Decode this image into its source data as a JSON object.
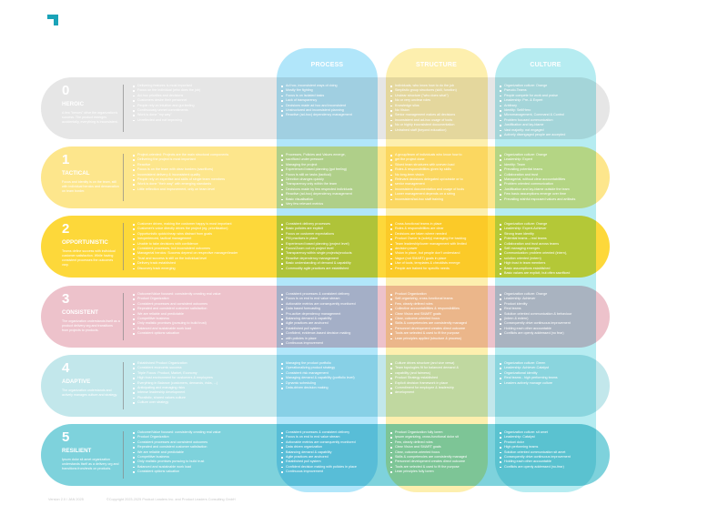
{
  "columns": [
    {
      "key": "process",
      "title": "PROCESS"
    },
    {
      "key": "structure",
      "title": "STRUCTURE"
    },
    {
      "key": "culture",
      "title": "CULTURE"
    }
  ],
  "colors": {
    "accent": "#1aa3b8",
    "process": "#b1e6fa",
    "structure": "#fdefae",
    "culture": "#b6ecf1"
  },
  "levels": [
    {
      "number": "0",
      "name": "HEROIC",
      "color": "#e6e6e6",
      "description": "A few \"heroes\" drive the organization's success. The product emerges accidentally, everything is inconsistent.",
      "summary": [
        "Delivering features is most important",
        "Focus on the individual (who does the job)",
        "Ad-hoc priorities and decisions",
        "Customers desire their personnel",
        "People rely on intuition and gut feeling",
        "Continuously unmet commitments",
        "Work is done \"my way\"",
        "Unreflected and not improving"
      ],
      "process": [
        "Ad hoc, inconsistent ways of doing",
        "Mostly fire fighting",
        "Focus is on isolated tasks",
        "Lack of transparency",
        "Decisions made ad hoc and inconsistent",
        "Unstructured and inconsistent planning",
        "Reactive (ad-hoc) dependency management"
      ],
      "structure": [
        "Individuals, who know how to do the job",
        "Simplistic group structures (skill, function)",
        "Unclear structure (\"who does what\")",
        "No or very unclear roles",
        "Knowledge silos",
        "No Vision",
        "Senior management makes all decisions",
        "Inconsistent and ad-hoc usage of tools",
        "No or highly inconsistent documentation",
        "Untrained staff (beyond education)"
      ],
      "culture": [
        "Organization culture: Orange",
        "Pseudo-Teams",
        "People compete for work and praise",
        "Leadership: Pre- & Expert",
        "Arbitrary",
        "Identity: Self/Hero",
        "Micromanagement, Command & Control",
        "Problem focused communication",
        "Justification and lay-blame",
        "Vast majority: not engaged",
        "Actively disengaged people are accepted"
      ]
    },
    {
      "number": "1",
      "name": "TACTICAL",
      "color": "#fde68c",
      "description": "Focus and identity is on the team, still with individual heroics and demarcation on team border.",
      "summary": [
        "Project-oriented: Projects are the main structural components",
        "Delivering the project is most important",
        "Reactive",
        "Focus is on the team with clear borders (sacrifices)",
        "Inconsistent delivery & inconsistent quality",
        "People rely on expertise and skills of single team members",
        "Work is done \"their way\" with emerging standards",
        "Little reflection and improvement, only on team level"
      ],
      "process": [
        "Processes, Policies and Values emerge,",
        "sacrificed under pressure",
        "Managing the project",
        "Experienced based planning (gut feeling)",
        "Focus is still on tasks (tactical)",
        "Direction changes quickly",
        "Transparency only within the team",
        "Decisions made by few respected individuals",
        "Reactive (ad-hoc) dependency management",
        "Basic visualisation",
        "Very few relevant metrics"
      ],
      "structure": [
        "A group/team of individuals who know how to",
        "get the project done",
        "Siloed team structures with uneven load",
        "Roles & responsibilities given by skills",
        "No long-term vision",
        "Relevant decisions delegated up/outside or to",
        "senior management",
        "Inconsistent documentation and usage of tools",
        "Lower management depends on a string",
        "Inconsistent/ad-hoc staff training"
      ],
      "culture": [
        "Organization culture: Orange",
        "Leadership: Expert",
        "Identity: Team",
        "Prevailing potential teams",
        "Collaboration and trust",
        "Managerial, without clear accountabilities",
        "Problem oriented communication",
        "Justification and lay-blame outside the team",
        "Few basic assumptions emerge over time",
        "Prevailing wishful espoused values and artifacts"
      ]
    },
    {
      "number": "2",
      "name": "OPPORTUNISTIC",
      "color": "#fdd83a",
      "description": "Teams define success with individual customer satisfaction. While having consistent processes the outcomes vary.",
      "summary": [
        "Customer driven, making the customer happy is most important",
        "Customer's voice directly drives the project (eg. prioritization)",
        "Opportunistic quick/cheap wins distract from goals",
        "Inexperienced, tactical management",
        "Unable to take decisions with confidence",
        "Consistent processes, but inconsistent outcomes",
        "Managerial heroics: Success depend on respective manager/leader",
        "Trust and success is still on the individual level",
        "Delivery track established",
        "Discovery track emerging"
      ],
      "process": [
        "Consistent delivery processes",
        "Basic policies are explicit",
        "Focus on customer expectations",
        "PM practices in place",
        "Experienced based planning (project level)",
        "Focus/Zoom out on project level",
        "Transparency within single projects/products",
        "Reactive dependency management",
        "Basic understanding of demand & capability",
        "Commodity agile practices are established"
      ],
      "structure": [
        "Cross-functional teams in place",
        "Roles & responsibilities are clear",
        "Decisions are taken where needed",
        "Product Owner is (solely) managing the backlog",
        "Team leadership/lower management with limited",
        "decision power",
        "Vision in place, but people don't understand",
        "Vague (not SMART) goals in place",
        "Use of tools, templates & checklists emerge",
        "People are trained for specific needs"
      ],
      "culture": [
        "Organization culture: Orange",
        "Leadership: Expert-Achiever",
        "Strong team identity",
        "Potential teams – real teams",
        "Collaboration and trust across teams",
        "Self-managing emerges",
        "Communication: problem oriented (intern),",
        "solution oriented (extern)",
        "High trust in team members",
        "Basic assumptions established",
        "Basic values are explicit, but often sacrificed"
      ]
    },
    {
      "number": "3",
      "name": "CONSISTENT",
      "color": "#edc2cb",
      "description": "The organization understands itself as a product delivery org and transitions from projects to products.",
      "summary": [
        "Outcome/Value focused: consistently creating real value",
        "Product Organization",
        "Consistent processes and consistent outcomes",
        "Repeated and consistent customer satisfaction",
        "We are reliable and predictable",
        "Competitive business",
        "Only realistic promises (pursuing to build trust)",
        "Balanced and sustainable work load",
        "Consistent options valuation"
      ],
      "process": [
        "Consistent processes & consistent delivery",
        "Focus is on end to end value stream",
        "Actionable metrics are consequently monitored",
        "Data based forecasting",
        "Pro-active dependency management",
        "Balancing demand & capability",
        "Agile practices are anchored",
        "Established pull system",
        "Confident, evidence-based decision making",
        "with policies in place",
        "Continuous improvement"
      ],
      "structure": [
        "Product Organization",
        "Self-organizing, cross-functional teams",
        "Few, clearly defined roles",
        "Collective accountabilities & responsibilities",
        "Clear Vision and SMART goals",
        "Clear, outcome-oriented focus",
        "Skills & competencies are consistently managed",
        "Personnel development creates direct outcome",
        "Tools are selected & used to fit the purpose",
        "Lean principles applied (structure & process)"
      ],
      "culture": [
        "Organization culture: Orange",
        "Leadership: Achiever",
        "Product identity",
        "Real teams",
        "Solution oriented communication & behaviour",
        "(intern & extern)",
        "Consequently drive continuous improvement",
        "Holding each other accountable",
        "Conflicts are openly addressed (no fear)"
      ]
    },
    {
      "number": "4",
      "name": "ADAPTIVE",
      "color": "#c2e7eb",
      "description": "The organization understands and actively manages culture and strategy.",
      "summary": [
        "Established Product Organization",
        "Consistent economic success",
        "Triple Focus: Product, Market, Economy",
        "High trust environment for customers & employees",
        "Everything in Balance (customers, demands, risks, ...)",
        "Anticipating and managing risks",
        "Intense leadership development",
        "Pluralistic, shared values culture",
        "Culture over strategy"
      ],
      "process": [
        "Managing the product portfolio",
        "Operationalizing product strategy",
        "Consistent risk management",
        "Managing demand & capability (portfolio level)",
        "Dynamic scheduling",
        "Data-driven decision making"
      ],
      "structure": [
        "Culture drives structure (and vice versa)",
        "Team topologies fit for balanced demand &",
        "capability (and fairness)",
        "Product Strategy established",
        "Explicit decision framework in place",
        "Commitment for employee & leadership",
        "development"
      ],
      "culture": [
        "Organization culture: Green",
        "Leadership: Achiever-Catalyst",
        "Organizational identity",
        "Real teams - high performing teams",
        "Leaders actively manage culture"
      ]
    },
    {
      "number": "5",
      "name": "RESILIENT",
      "color": "#7ed2dc",
      "description": "Ipsum dolor sit amet organization understands itself as a delivery org and transitions from/ends on products.",
      "summary": [
        "Outcome/Value focused: consistently creating real value",
        "Product Organization",
        "Consistent processes and consistent outcomes",
        "Repeated and consistent customer satisfaction",
        "We are reliable and predictable",
        "Competitive business",
        "Only realistic promises pursuing to build trust",
        "Balanced and sustainable work load",
        "Consistent options valuation"
      ],
      "process": [
        "Consistent processes & consistent delivery",
        "Focus is on end to end value stream",
        "Actionable metrics are consequently monitored",
        "Data driven organization",
        "Balancing demand & capability",
        "Agile practices are anchored",
        "Established pull system",
        "Confident decision making with policies in place",
        "Continuous improvement"
      ],
      "structure": [
        "Product Organization fully lorem",
        "Ipsum organizing, cross-functional dolor sit",
        "Few, clearly defined roles",
        "Clear Vision and SMART goals",
        "Clear, outcome-oriented focus",
        "Skills & competencies are consistently managed",
        "Personnel development creates direct outcome",
        "Tools are selected & used to fit the purpose",
        "Lean principles fully lorem"
      ],
      "culture": [
        "Organization culture: sit amet",
        "Leadership: Catalyst",
        "Product dolor",
        "High performing teams",
        "Solution oriented communication sit amet",
        "Consequently drive continuous improvement",
        "Holding each other accountable",
        "Conflicts are openly addressed (no-fear)"
      ]
    }
  ],
  "footer": {
    "version": "Version 2.0 / JAN 2025",
    "copyright": "©Copyright 2023-2025 Product Leaders Inc. and Product Leaders Consulting GmbH"
  }
}
